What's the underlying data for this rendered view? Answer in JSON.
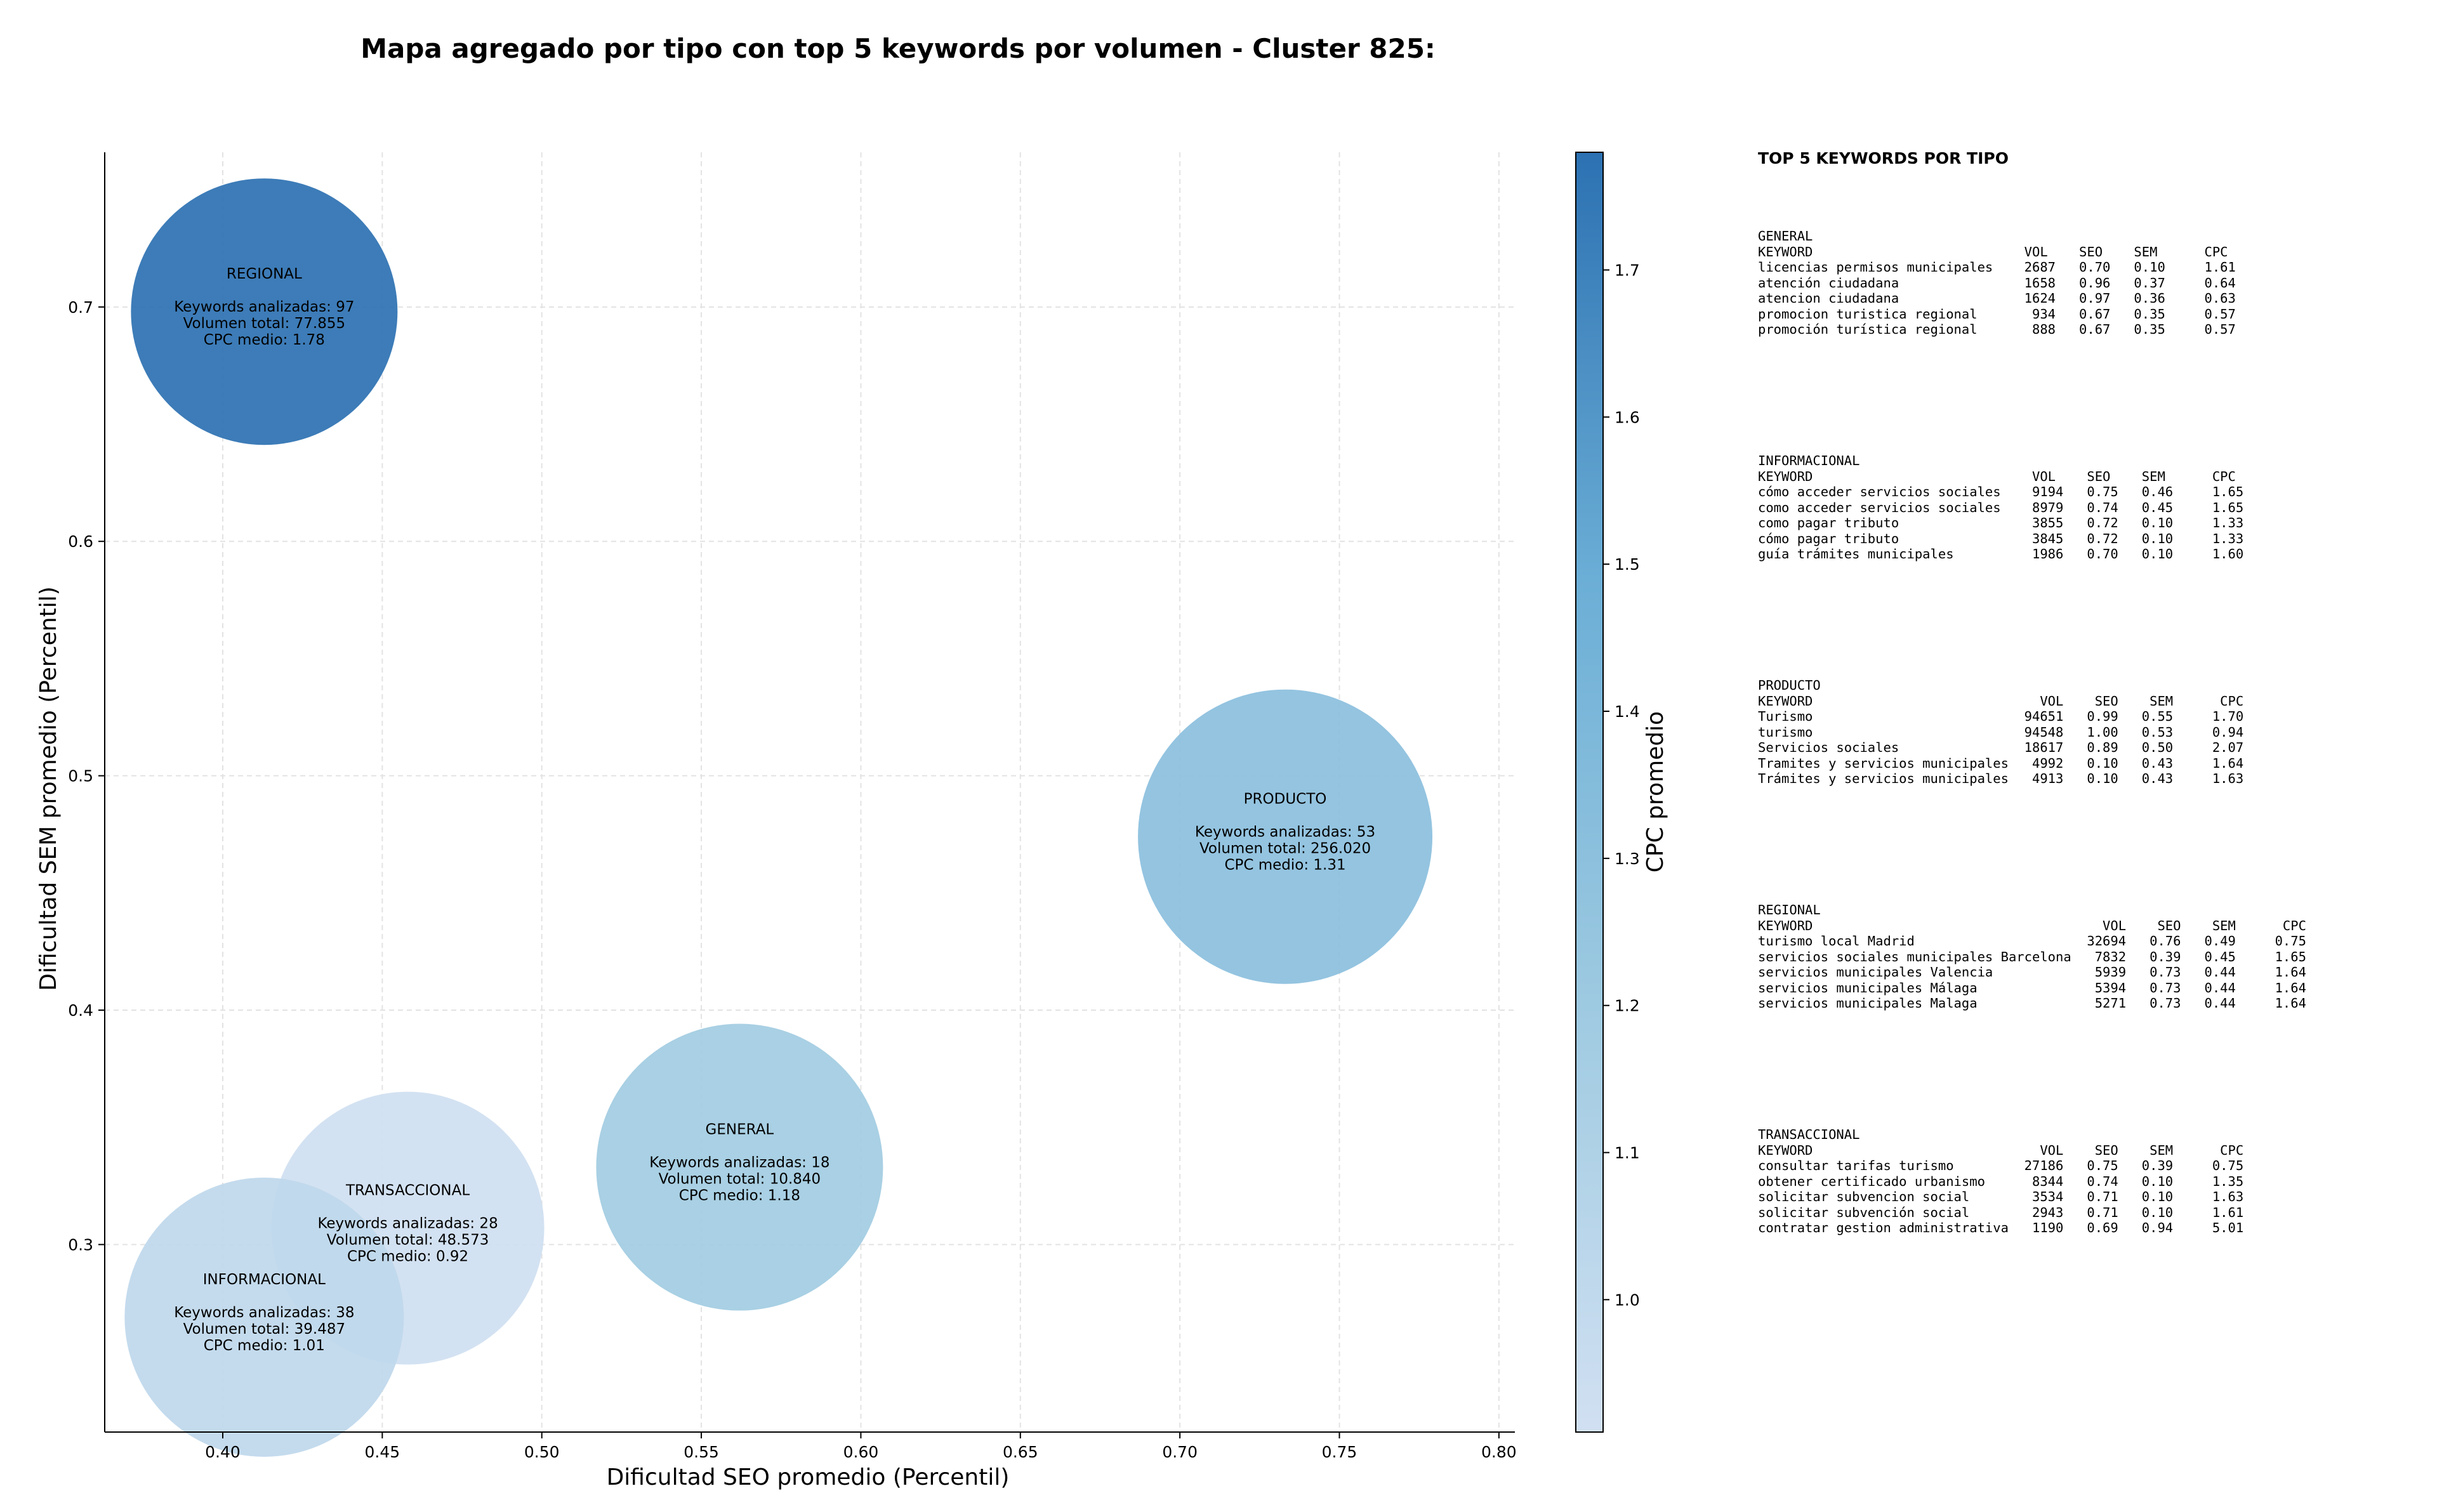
{
  "chart_data": {
    "type": "scatter",
    "title": "Mapa agregado por tipo con top 5 keywords por volumen - Cluster 825:",
    "xlabel": "Dificultad SEO promedio (Percentil)",
    "ylabel": "Dificultad SEM promedio (Percentil)",
    "xlim": [
      0.363,
      0.805
    ],
    "ylim": [
      0.22,
      0.766
    ],
    "xticks": [
      0.4,
      0.45,
      0.5,
      0.55,
      0.6,
      0.65,
      0.7,
      0.75,
      0.8
    ],
    "xtick_labels": [
      "0.40",
      "0.45",
      "0.50",
      "0.55",
      "0.60",
      "0.65",
      "0.70",
      "0.75",
      "0.80"
    ],
    "yticks": [
      0.3,
      0.4,
      0.5,
      0.6,
      0.7
    ],
    "ytick_labels": [
      "0.3",
      "0.4",
      "0.5",
      "0.6",
      "0.7"
    ],
    "grid": true,
    "colorbar": {
      "label": "CPC promedio",
      "range": [
        0.91,
        1.78
      ],
      "ticks": [
        1.0,
        1.1,
        1.2,
        1.3,
        1.4,
        1.5,
        1.6,
        1.7
      ],
      "tick_labels": [
        "1.0",
        "1.1",
        "1.2",
        "1.3",
        "1.4",
        "1.5",
        "1.6",
        "1.7"
      ],
      "colors": [
        "#d1e0f2",
        "#9ecae1",
        "#6baed6",
        "#2c71b2"
      ]
    },
    "points": [
      {
        "name": "REGIONAL",
        "x": 0.413,
        "y": 0.698,
        "cpc": 1.78,
        "keywords": 97,
        "volume": 77855,
        "line1": "Keywords analizadas: 97",
        "line2": "Volumen total: 77.855",
        "line3": "CPC medio: 1.78"
      },
      {
        "name": "PRODUCTO",
        "x": 0.733,
        "y": 0.474,
        "cpc": 1.31,
        "keywords": 53,
        "volume": 256020,
        "line1": "Keywords analizadas: 53",
        "line2": "Volumen total: 256.020",
        "line3": "CPC medio: 1.31"
      },
      {
        "name": "GENERAL",
        "x": 0.562,
        "y": 0.333,
        "cpc": 1.18,
        "keywords": 18,
        "volume": 10840,
        "line1": "Keywords analizadas: 18",
        "line2": "Volumen total: 10.840",
        "line3": "CPC medio: 1.18"
      },
      {
        "name": "TRANSACCIONAL",
        "x": 0.458,
        "y": 0.307,
        "cpc": 0.92,
        "keywords": 28,
        "volume": 48573,
        "line1": "Keywords analizadas: 28",
        "line2": "Volumen total: 48.573",
        "line3": "CPC medio: 0.92"
      },
      {
        "name": "INFORMACIONAL",
        "x": 0.413,
        "y": 0.269,
        "cpc": 1.01,
        "keywords": 38,
        "volume": 39487,
        "line1": "Keywords analizadas: 38",
        "line2": "Volumen total: 39.487",
        "line3": "CPC medio: 1.01"
      }
    ]
  },
  "panel": {
    "title": "TOP 5 KEYWORDS POR TIPO",
    "blocks": [
      {
        "name": "GENERAL",
        "text": "GENERAL\nKEYWORD                           VOL    SEO    SEM      CPC\nlicencias permisos municipales    2687   0.70   0.10     1.61\natención ciudadana                1658   0.96   0.37     0.64\natencion ciudadana                1624   0.97   0.36     0.63\npromocion turistica regional       934   0.67   0.35     0.57\npromoción turística regional       888   0.67   0.35     0.57"
      },
      {
        "name": "INFORMACIONAL",
        "text": "INFORMACIONAL\nKEYWORD                            VOL    SEO    SEM      CPC\ncómo acceder servicios sociales    9194   0.75   0.46     1.65\ncomo acceder servicios sociales    8979   0.74   0.45     1.65\ncomo pagar tributo                 3855   0.72   0.10     1.33\ncómo pagar tributo                 3845   0.72   0.10     1.33\nguía trámites municipales          1986   0.70   0.10     1.60"
      },
      {
        "name": "PRODUCTO",
        "text": "PRODUCTO\nKEYWORD                             VOL    SEO    SEM      CPC\nTurismo                           94651   0.99   0.55     1.70\nturismo                           94548   1.00   0.53     0.94\nServicios sociales                18617   0.89   0.50     2.07\nTramites y servicios municipales   4992   0.10   0.43     1.64\nTrámites y servicios municipales   4913   0.10   0.43     1.63"
      },
      {
        "name": "REGIONAL",
        "text": "REGIONAL\nKEYWORD                                     VOL    SEO    SEM      CPC\nturismo local Madrid                      32694   0.76   0.49     0.75\nservicios sociales municipales Barcelona   7832   0.39   0.45     1.65\nservicios municipales Valencia             5939   0.73   0.44     1.64\nservicios municipales Málaga               5394   0.73   0.44     1.64\nservicios municipales Malaga               5271   0.73   0.44     1.64"
      },
      {
        "name": "TRANSACCIONAL",
        "text": "TRANSACCIONAL\nKEYWORD                             VOL    SEO    SEM      CPC\nconsultar tarifas turismo         27186   0.75   0.39     0.75\nobtener certificado urbanismo      8344   0.74   0.10     1.35\nsolicitar subvencion social        3534   0.71   0.10     1.63\nsolicitar subvención social        2943   0.71   0.10     1.61\ncontratar gestion administrativa   1190   0.69   0.94     5.01"
      }
    ]
  }
}
